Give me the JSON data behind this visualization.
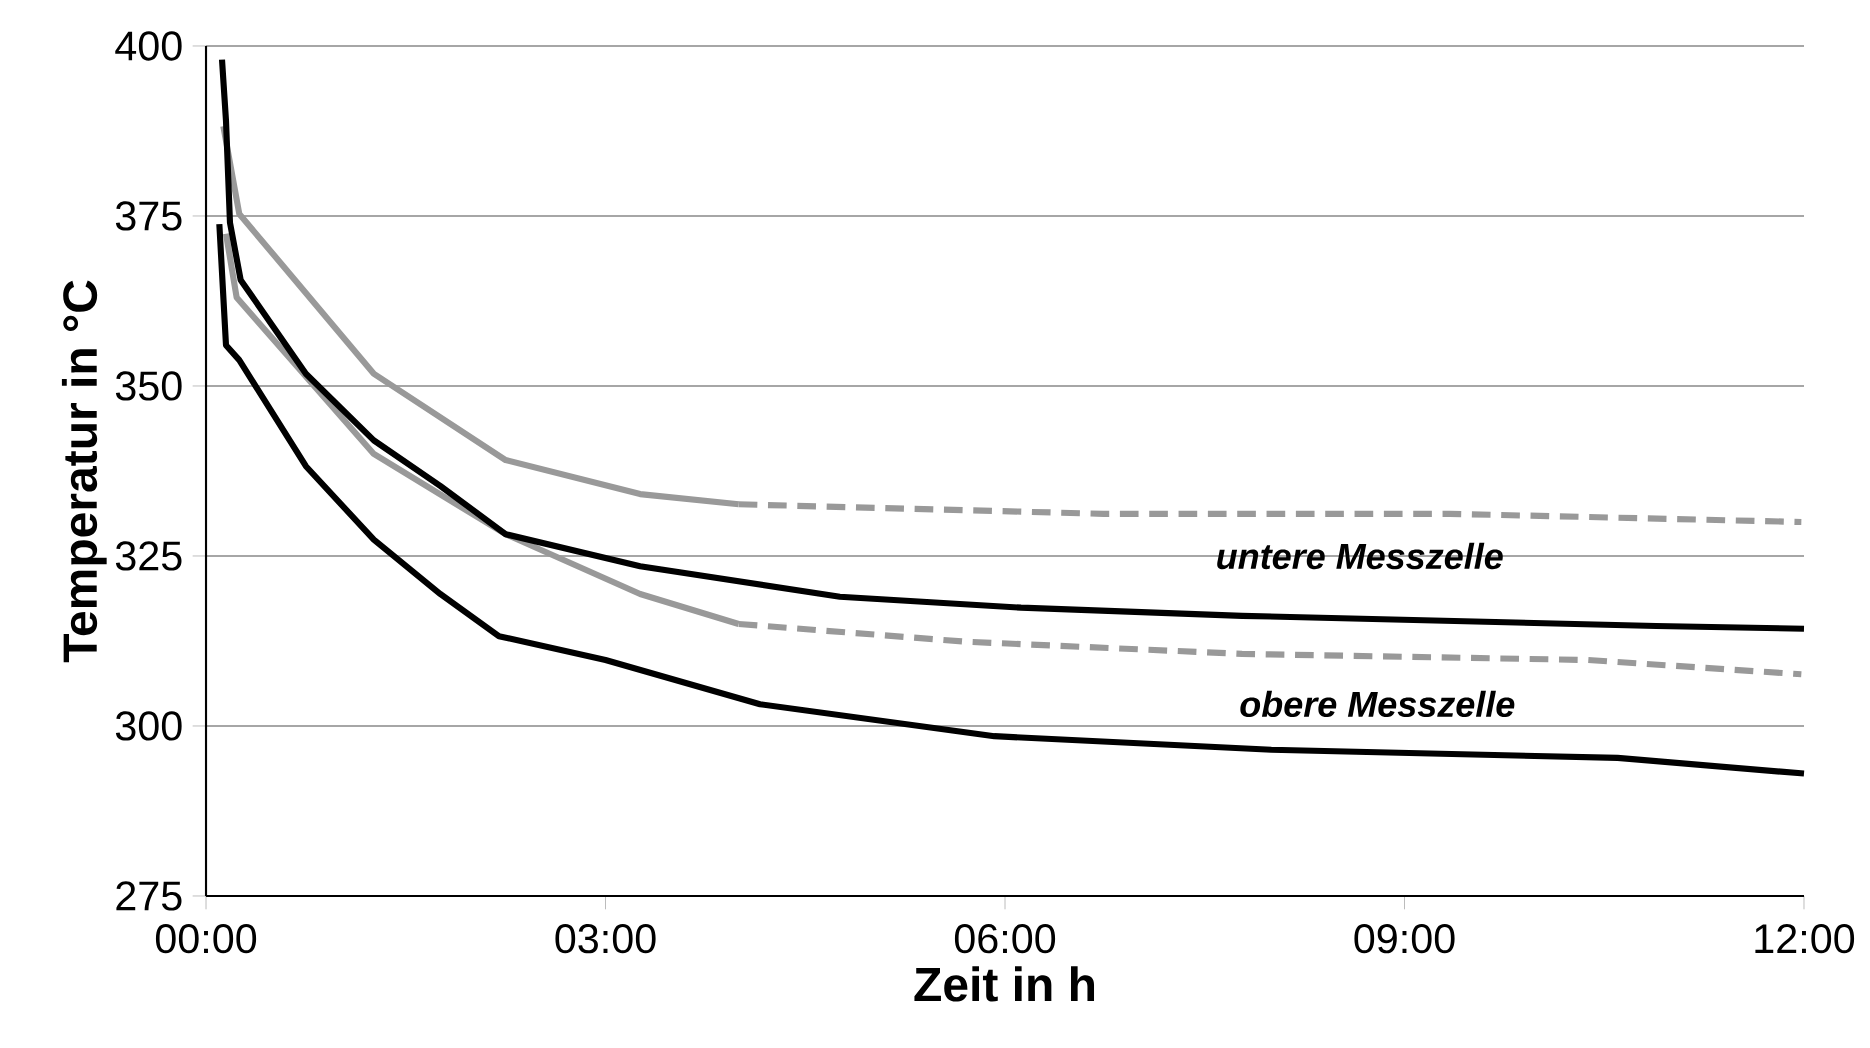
{
  "chart_data": {
    "type": "line",
    "xlabel": "Zeit in h",
    "ylabel": "Temperatur in °C",
    "xlim": [
      0,
      12
    ],
    "xticks": [
      {
        "value": 0,
        "label": "00:00"
      },
      {
        "value": 3,
        "label": "03:00"
      },
      {
        "value": 6,
        "label": "06:00"
      },
      {
        "value": 9,
        "label": "09:00"
      },
      {
        "value": 12,
        "label": "12:00"
      }
    ],
    "ylim": [
      275,
      400
    ],
    "yticks": [
      275,
      300,
      325,
      350,
      375,
      400
    ],
    "grid": "y",
    "series": [
      {
        "color": "#999999",
        "line_style": "solid",
        "x": [
          0.13,
          0.25,
          1.26,
          2.25,
          3.26,
          4.0
        ],
        "values": [
          388.2,
          375.3,
          351.8,
          339.1,
          334.1,
          332.6
        ]
      },
      {
        "color": "#999999",
        "line_style": "dashed",
        "x": [
          4.0,
          6.74,
          9.34,
          11.98
        ],
        "values": [
          332.6,
          331.2,
          331.2,
          330
        ]
      },
      {
        "color": "#999999",
        "line_style": "solid",
        "x": [
          0.15,
          0.23,
          1.26,
          2.25,
          3.26,
          4.0
        ],
        "values": [
          372.4,
          363,
          340,
          328.2,
          319.4,
          315
        ]
      },
      {
        "color": "#999999",
        "line_style": "dashed",
        "x": [
          4.0,
          5.7,
          7.78,
          10.38,
          11.98
        ],
        "values": [
          315,
          312.4,
          310.6,
          309.7,
          307.6
        ]
      },
      {
        "color": "#000000",
        "line_style": "solid",
        "x": [
          0.12,
          0.15,
          0.18,
          0.26,
          0.75,
          1.26,
          1.76,
          2.25,
          3.26,
          4.76,
          6.12,
          7.78,
          10.89,
          12
        ],
        "values": [
          398,
          389,
          374,
          365.6,
          351.8,
          342,
          335.3,
          328.2,
          323.5,
          319,
          317.4,
          316.2,
          314.7,
          314.3
        ]
      },
      {
        "color": "#000000",
        "line_style": "solid",
        "x": [
          0.1,
          0.15,
          0.25,
          0.75,
          1.26,
          1.76,
          2.2,
          3,
          4.16,
          5.92,
          8,
          10.6,
          12
        ],
        "values": [
          373.8,
          356,
          353.8,
          338.2,
          327.4,
          319.4,
          313.2,
          309.7,
          303.2,
          298.5,
          296.5,
          295.3,
          293
        ]
      }
    ],
    "annotations": [
      "untere Messzelle",
      "obere Messzelle"
    ]
  }
}
